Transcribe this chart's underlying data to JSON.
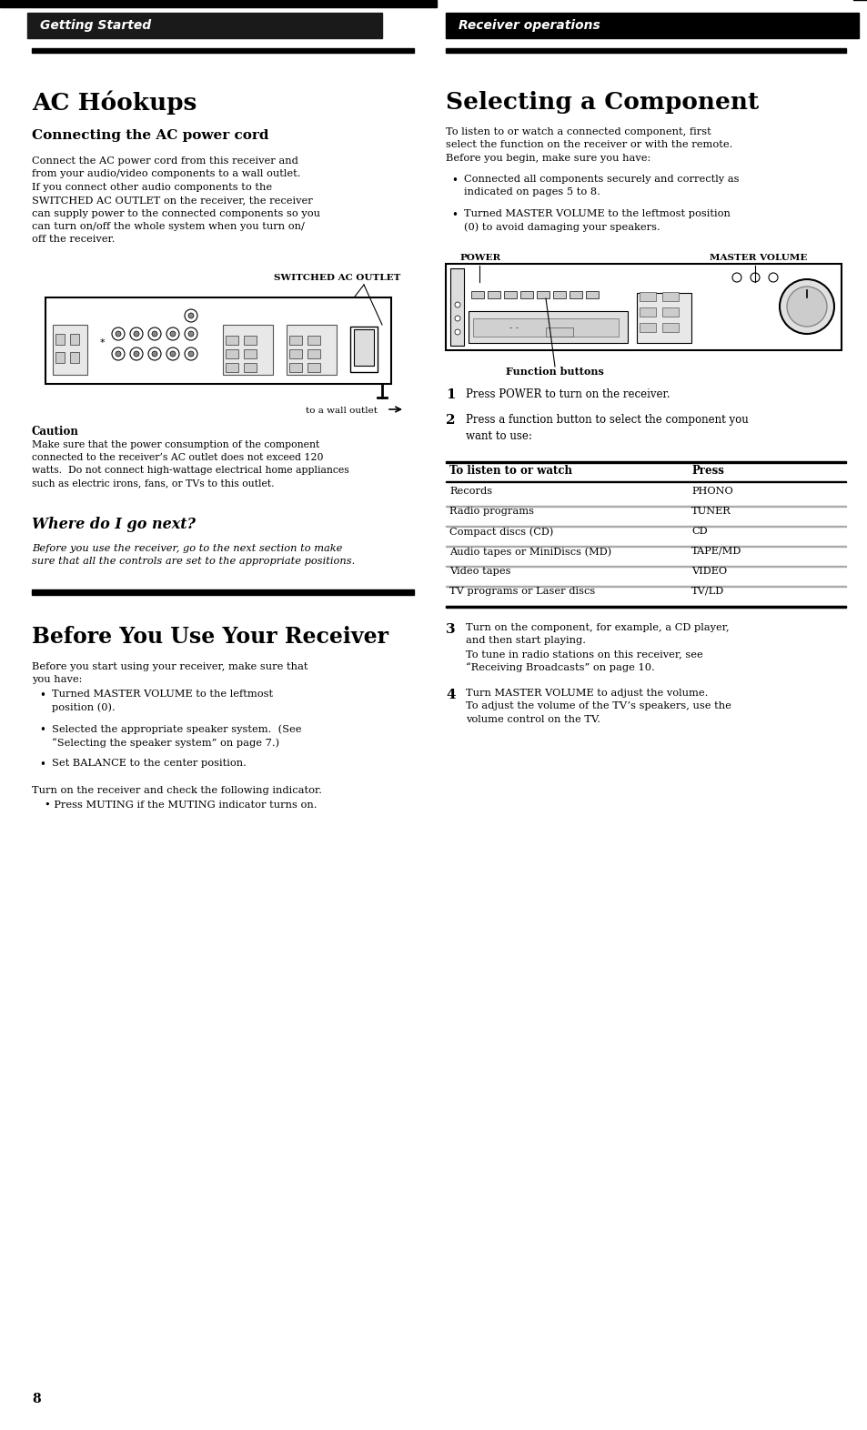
{
  "page_bg": "#ffffff",
  "left_header_bg": "#1a1a1a",
  "right_header_bg": "#000000",
  "left_header_text": "Getting Started",
  "right_header_text": "Receiver operations",
  "left_col_title": "AC Hóokups",
  "left_section1_title": "Connecting the AC power cord",
  "left_section1_body": "Connect the AC power cord from this receiver and\nfrom your audio/video components to a wall outlet.\nIf you connect other audio components to the\nSWITCHED AC OUTLET on the receiver, the receiver\ncan supply power to the connected components so you\ncan turn on/off the whole system when you turn on/\noff the receiver.",
  "switched_ac_label": "SWITCHED AC OUTLET",
  "wall_outlet_label": "to a wall outlet",
  "caution_title": "Caution",
  "caution_body": "Make sure that the power consumption of the component\nconnected to the receiver’s AC outlet does not exceed 120\nwatts.  Do not connect high-wattage electrical home appliances\nsuch as electric irons, fans, or TVs to this outlet.",
  "where_next_title": "Where do I go next?",
  "where_next_body": "Before you use the receiver, go to the next section to make\nsure that all the controls are set to the appropriate positions.",
  "before_use_title": "Before You Use Your Receiver",
  "before_use_body": "Before you start using your receiver, make sure that\nyou have:",
  "before_use_bullets": [
    "Turned MASTER VOLUME to the leftmost\nposition (0).",
    "Selected the appropriate speaker system.  (See\n“Selecting the speaker system” on page 7.)",
    "Set BALANCE to the center position."
  ],
  "before_use_footer1": "Turn on the receiver and check the following indicator.",
  "before_use_footer2": "• Press MUTING if the MUTING indicator turns on.",
  "right_col_title": "Selecting a Component",
  "right_intro": "To listen to or watch a connected component, first\nselect the function on the receiver or with the remote.\nBefore you begin, make sure you have:",
  "right_bullets": [
    "Connected all components securely and correctly as\nindicated on pages 5 to 8.",
    "Turned MASTER VOLUME to the leftmost position\n(0) to avoid damaging your speakers."
  ],
  "power_label": "POWER",
  "master_vol_label": "MASTER VOLUME",
  "function_buttons_label": "Function buttons",
  "step1": "Press POWER to turn on the receiver.",
  "step2": "Press a function button to select the component you\nwant to use:",
  "table_header_col1": "To listen to or watch",
  "table_header_col2": "Press",
  "table_rows": [
    [
      "Records",
      "PHONO"
    ],
    [
      "Radio programs",
      "TUNER"
    ],
    [
      "Compact discs (CD)",
      "CD"
    ],
    [
      "Audio tapes or MiniDiscs (MD)",
      "TAPE/MD"
    ],
    [
      "Video tapes",
      "VIDEO"
    ],
    [
      "TV programs or Laser discs",
      "TV/LD"
    ]
  ],
  "step3": "Turn on the component, for example, a CD player,\nand then start playing.\nTo tune in radio stations on this receiver, see\n“Receiving Broadcasts” on page 10.",
  "step4": "Turn MASTER VOLUME to adjust the volume.\nTo adjust the volume of the TV’s speakers, use the\nvolume control on the TV.",
  "page_number": "8"
}
